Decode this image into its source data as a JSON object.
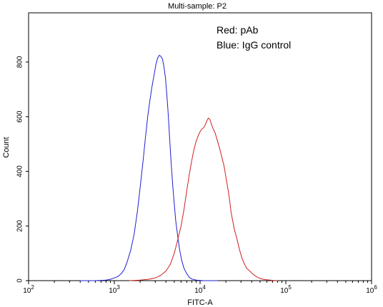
{
  "chart_data": {
    "type": "line",
    "title": "Multi-sample: P2",
    "xlabel": "FITC-A",
    "ylabel": "Count",
    "x_scale": "log",
    "xlim": [
      100,
      1000000
    ],
    "ylim": [
      0,
      980
    ],
    "x_ticks": [
      {
        "value": 100,
        "base": "10",
        "exp": "2"
      },
      {
        "value": 1000,
        "base": "10",
        "exp": "3"
      },
      {
        "value": 10000,
        "base": "10",
        "exp": "4"
      },
      {
        "value": 100000,
        "base": "10",
        "exp": "5"
      },
      {
        "value": 1000000,
        "base": "10",
        "exp": "6"
      }
    ],
    "y_ticks": [
      0,
      200,
      400,
      600,
      800
    ],
    "legend": [
      {
        "text": "Red: pAb",
        "color": "#e02020"
      },
      {
        "text": "Blue: IgG control",
        "color": "#1f4fe0"
      }
    ],
    "series": [
      {
        "color": "#1f1fd0",
        "points": [
          [
            400,
            0
          ],
          [
            600,
            0
          ],
          [
            800,
            2
          ],
          [
            900,
            5
          ],
          [
            1000,
            10
          ],
          [
            1100,
            15
          ],
          [
            1200,
            25
          ],
          [
            1300,
            40
          ],
          [
            1400,
            65
          ],
          [
            1550,
            110
          ],
          [
            1700,
            170
          ],
          [
            1850,
            250
          ],
          [
            2000,
            340
          ],
          [
            2150,
            430
          ],
          [
            2300,
            520
          ],
          [
            2450,
            600
          ],
          [
            2600,
            660
          ],
          [
            2750,
            710
          ],
          [
            2900,
            750
          ],
          [
            3050,
            790
          ],
          [
            3200,
            815
          ],
          [
            3350,
            825
          ],
          [
            3500,
            820
          ],
          [
            3650,
            810
          ],
          [
            3800,
            780
          ],
          [
            3950,
            740
          ],
          [
            4100,
            680
          ],
          [
            4250,
            610
          ],
          [
            4400,
            530
          ],
          [
            4600,
            430
          ],
          [
            4800,
            350
          ],
          [
            5000,
            280
          ],
          [
            5200,
            220
          ],
          [
            5500,
            160
          ],
          [
            5800,
            110
          ],
          [
            6100,
            75
          ],
          [
            6500,
            45
          ],
          [
            7000,
            25
          ],
          [
            7500,
            12
          ],
          [
            8000,
            6
          ],
          [
            9000,
            2
          ],
          [
            11000,
            0
          ],
          [
            16000,
            0
          ]
        ]
      },
      {
        "color": "#d01f1f",
        "points": [
          [
            1500,
            0
          ],
          [
            2000,
            2
          ],
          [
            2500,
            5
          ],
          [
            3000,
            10
          ],
          [
            3500,
            20
          ],
          [
            4000,
            35
          ],
          [
            4500,
            60
          ],
          [
            5000,
            100
          ],
          [
            5500,
            150
          ],
          [
            6000,
            200
          ],
          [
            6500,
            260
          ],
          [
            7000,
            330
          ],
          [
            7500,
            390
          ],
          [
            8000,
            440
          ],
          [
            8500,
            480
          ],
          [
            9000,
            510
          ],
          [
            9500,
            530
          ],
          [
            10000,
            545
          ],
          [
            10500,
            555
          ],
          [
            11000,
            560
          ],
          [
            11500,
            570
          ],
          [
            12000,
            585
          ],
          [
            12500,
            595
          ],
          [
            13000,
            590
          ],
          [
            13500,
            575
          ],
          [
            14000,
            560
          ],
          [
            15000,
            540
          ],
          [
            16000,
            510
          ],
          [
            17000,
            480
          ],
          [
            18000,
            450
          ],
          [
            19000,
            420
          ],
          [
            20000,
            380
          ],
          [
            21000,
            340
          ],
          [
            22000,
            300
          ],
          [
            23000,
            250
          ],
          [
            25000,
            190
          ],
          [
            27000,
            150
          ],
          [
            29000,
            110
          ],
          [
            31000,
            80
          ],
          [
            33000,
            60
          ],
          [
            35000,
            45
          ],
          [
            38000,
            35
          ],
          [
            41000,
            25
          ],
          [
            45000,
            15
          ],
          [
            50000,
            8
          ],
          [
            55000,
            5
          ],
          [
            60000,
            3
          ],
          [
            70000,
            1
          ],
          [
            80000,
            0
          ]
        ]
      }
    ]
  }
}
